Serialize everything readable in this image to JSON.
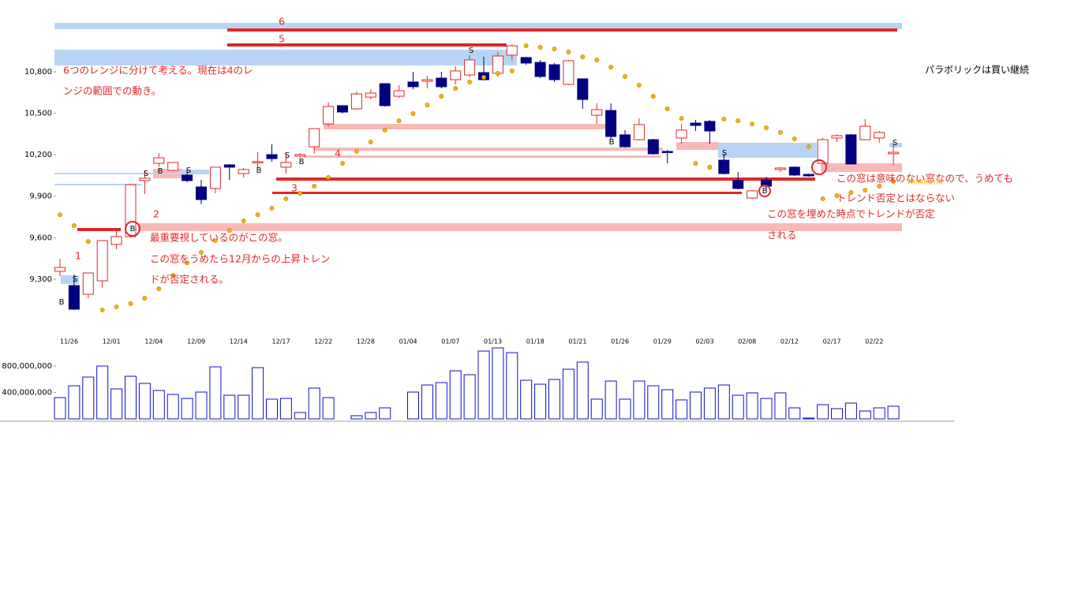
{
  "chart_data": {
    "type": "candlestick",
    "categories": [
      "11/26",
      null,
      null,
      "12/01",
      null,
      null,
      "12/04",
      null,
      null,
      "12/09",
      null,
      null,
      "12/14",
      null,
      null,
      "12/17",
      null,
      null,
      "12/22",
      null,
      null,
      "12/28",
      null,
      null,
      "01/04",
      null,
      null,
      "01/07",
      null,
      null,
      "01/13",
      null,
      null,
      "01/18",
      null,
      null,
      "01/21",
      null,
      null,
      "01/26",
      null,
      null,
      "01/29",
      null,
      null,
      "02/03",
      null,
      null,
      "02/08",
      null,
      null,
      "02/12",
      null,
      null,
      "02/17",
      null,
      null,
      "02/22",
      null,
      null
    ],
    "open": [
      9357,
      9254,
      9191,
      9288,
      9551,
      9608,
      10013,
      10138,
      10087,
      10053,
      9967,
      9956,
      10127,
      10064,
      10144,
      10201,
      10110,
      10190,
      10258,
      10423,
      10555,
      10532,
      10617,
      10714,
      10623,
      10726,
      10732,
      10754,
      10743,
      10777,
      10794,
      10789,
      10920,
      10903,
      10868,
      10851,
      10709,
      10749,
      10486,
      10520,
      10344,
      10309,
      10309,
      10224,
      10321,
      10429,
      10441,
      10161,
      10013,
      9887,
      10018,
      10093,
      10110,
      10058,
      10138,
      10321,
      10344,
      10309,
      10321,
      10207
    ],
    "high": [
      9448,
      9334,
      9345,
      9579,
      9653,
      9990,
      10087,
      10212,
      10144,
      10093,
      10019,
      10110,
      10133,
      10104,
      10218,
      10275,
      10218,
      10212,
      10389,
      10578,
      10555,
      10657,
      10674,
      10714,
      10703,
      10800,
      10771,
      10800,
      10840,
      10920,
      10908,
      10943,
      10999,
      10908,
      10886,
      10863,
      10886,
      10749,
      10572,
      10572,
      10378,
      10463,
      10315,
      10235,
      10423,
      10452,
      10452,
      10207,
      10076,
      9944,
      10041,
      10110,
      10116,
      10064,
      10321,
      10349,
      10349,
      10458,
      10372,
      10287
    ],
    "low": [
      9322,
      9077,
      9163,
      9237,
      9516,
      9600,
      9916,
      10110,
      10087,
      10001,
      9842,
      9921,
      10019,
      10036,
      10104,
      10150,
      10064,
      10178,
      10207,
      10406,
      10498,
      10526,
      10600,
      10549,
      10612,
      10674,
      10680,
      10680,
      10709,
      10760,
      10737,
      10766,
      10880,
      10851,
      10754,
      10726,
      10703,
      10532,
      10423,
      10315,
      10252,
      10304,
      10201,
      10138,
      10281,
      10372,
      10281,
      10058,
      9950,
      9882,
      9950,
      10076,
      10047,
      10041,
      10133,
      10292,
      10133,
      10304,
      10287,
      10127
    ],
    "close": [
      9385,
      9083,
      9345,
      9579,
      9608,
      9984,
      10030,
      10178,
      10144,
      10013,
      9876,
      10110,
      10110,
      10093,
      10150,
      10172,
      10144,
      10201,
      10389,
      10549,
      10509,
      10640,
      10646,
      10555,
      10663,
      10692,
      10743,
      10692,
      10806,
      10886,
      10743,
      10914,
      10988,
      10863,
      10766,
      10743,
      10880,
      10600,
      10526,
      10332,
      10258,
      10418,
      10207,
      10218,
      10378,
      10412,
      10372,
      10064,
      9956,
      9939,
      9973,
      10104,
      10053,
      10047,
      10309,
      10338,
      10133,
      10406,
      10361,
      10218
    ],
    "sar": [
      9767,
      9688,
      9573,
      9077,
      9100,
      9123,
      9163,
      9231,
      9328,
      9419,
      9494,
      9579,
      9653,
      9722,
      9767,
      9813,
      9882,
      9921,
      9973,
      10036,
      10138,
      10224,
      10292,
      10378,
      10446,
      10498,
      10560,
      10623,
      10680,
      10726,
      10760,
      10789,
      10806,
      10988,
      10977,
      10965,
      10943,
      10908,
      10886,
      10834,
      10766,
      10703,
      10623,
      10532,
      10463,
      10138,
      10110,
      10458,
      10446,
      10423,
      10395,
      10361,
      10315,
      10258,
      9882,
      9904,
      9927,
      9944,
      9973,
      10007
    ],
    "sar_label": "PARABOLIC",
    "up_color": "#e02828",
    "down_color": "#000080",
    "sar_color": "#f5b400",
    "ylim": [
      8980,
      11205
    ],
    "yticks": [
      {
        "value": 9300,
        "label": "9,300"
      },
      {
        "value": 9600,
        "label": "9,600"
      },
      {
        "value": 9900,
        "label": "9,900"
      },
      {
        "value": 10200,
        "label": "10,200"
      },
      {
        "value": 10500,
        "label": "10,500"
      },
      {
        "value": 10800,
        "label": "10,800"
      }
    ],
    "volume": [
      322000000,
      501000000,
      633000000,
      800000000,
      454000000,
      645000000,
      537000000,
      430000000,
      370000000,
      310000000,
      406000000,
      788000000,
      358000000,
      358000000,
      776000000,
      299000000,
      310000000,
      96000000,
      466000000,
      322000000,
      null,
      48000000,
      96000000,
      167000000,
      null,
      406000000,
      513000000,
      549000000,
      728000000,
      669000000,
      1027000000,
      1075000000,
      1003000000,
      585000000,
      525000000,
      597000000,
      752000000,
      860000000,
      299000000,
      573000000,
      299000000,
      573000000,
      501000000,
      442000000,
      287000000,
      406000000,
      466000000,
      513000000,
      358000000,
      394000000,
      310000000,
      394000000,
      167000000,
      12000000,
      215000000,
      155000000,
      239000000,
      119000000,
      167000000,
      191000000
    ],
    "volume_color": "#1010c8",
    "volume_ylim": [
      0,
      1100000000
    ],
    "volume_yticks": [
      {
        "value": 400000000,
        "label": "400,000,000"
      },
      {
        "value": 800000000,
        "label": "800,000,000"
      }
    ],
    "signals": [
      "B",
      "S",
      "S",
      "B",
      "S",
      "B",
      "S",
      "B",
      "S",
      "B",
      "S",
      "B",
      "S",
      "B"
    ],
    "range_labels": [
      "1",
      "2",
      "3",
      "4",
      "5",
      "6"
    ],
    "annotations": [
      "6つのレンジに分けて考える。現在は4のレ",
      "ンジの範囲での動き。",
      "最重要視しているのがこの窓。",
      "この窓をうめたら12月からの上昇トレン",
      "ドが否定される。",
      "この窓は意味のない窓なので、うめても",
      "トレンド否定とはならない",
      "この窓を埋めた時点でトレンドが否定",
      "される"
    ],
    "side_note": "パラボリックは買い継続"
  }
}
